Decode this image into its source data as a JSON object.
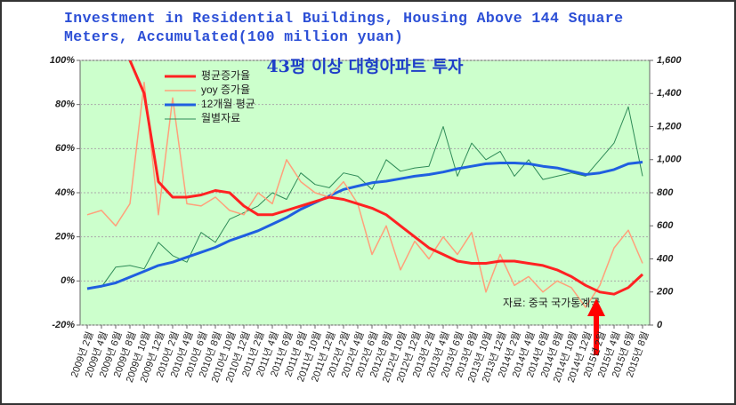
{
  "chart_data": {
    "type": "line",
    "title": "Investment in Residential Buildings, Housing Above 144 Square Meters, Accumulated(100 million yuan)",
    "subtitle": "43평 이상 대형아파트 투자",
    "source": "자료: 중국 국가통계국",
    "categories": [
      "2009년 2월",
      "2009년 4월",
      "2009년 6월",
      "2009년 8월",
      "2009년 10월",
      "2009년 12월",
      "2010년 2월",
      "2010년 4월",
      "2010년 6월",
      "2010년 8월",
      "2010년 10월",
      "2010년 12월",
      "2011년 2월",
      "2011년 4월",
      "2011년 6월",
      "2011년 8월",
      "2011년 10월",
      "2011년 12월",
      "2012년 2월",
      "2012년 4월",
      "2012년 6월",
      "2012년 8월",
      "2012년 10월",
      "2012년 12월",
      "2013년 2월",
      "2013년 4월",
      "2013년 6월",
      "2013년 8월",
      "2013년 10월",
      "2013년 12월",
      "2014년 2월",
      "2014년 4월",
      "2014년 6월",
      "2014년 8월",
      "2014년 10월",
      "2014년 12월",
      "2015년 2월",
      "2015년 4월",
      "2015년 6월",
      "2015년 8월"
    ],
    "series": [
      {
        "name": "평균증가율",
        "color": "#ff2222",
        "values": [
          null,
          null,
          null,
          100,
          85,
          45,
          38,
          38,
          39,
          41,
          40,
          34,
          30,
          30,
          32,
          34,
          36,
          38,
          37,
          35,
          33,
          30,
          25,
          20,
          15,
          12,
          9,
          8,
          8,
          9,
          9,
          8,
          7,
          5,
          2,
          -2,
          -5,
          -6,
          -3,
          3
        ]
      },
      {
        "name": "yoy 증가율",
        "color": "#ffa07a",
        "values": [
          30,
          32,
          25,
          35,
          90,
          30,
          83,
          35,
          34,
          38,
          32,
          30,
          40,
          35,
          55,
          45,
          40,
          38,
          45,
          35,
          12,
          25,
          5,
          18,
          10,
          20,
          12,
          22,
          -5,
          12,
          -2,
          2,
          -5,
          0,
          -3,
          -12,
          -2,
          15,
          23,
          8
        ]
      },
      {
        "name": "12개월 평균",
        "color": "#1f5fe0",
        "axis": "y2",
        "values": [
          220,
          235,
          255,
          290,
          325,
          360,
          380,
          410,
          440,
          470,
          510,
          540,
          570,
          610,
          650,
          700,
          740,
          780,
          820,
          840,
          860,
          870,
          885,
          900,
          910,
          925,
          945,
          960,
          975,
          980,
          980,
          975,
          960,
          950,
          930,
          910,
          920,
          940,
          975,
          985
        ]
      },
      {
        "name": "월별자료",
        "color": "#2e8b57",
        "axis": "y2",
        "values": [
          220,
          230,
          350,
          360,
          340,
          500,
          420,
          380,
          560,
          500,
          640,
          680,
          720,
          800,
          760,
          920,
          850,
          830,
          920,
          900,
          820,
          1000,
          930,
          950,
          960,
          1200,
          900,
          1100,
          1000,
          1050,
          900,
          1000,
          880,
          900,
          920,
          900,
          1000,
          1100,
          1320,
          900
        ]
      }
    ],
    "ylim": [
      -20,
      100
    ],
    "yticks": [
      {
        "value": -20,
        "label": "-20%"
      },
      {
        "value": 0,
        "label": "0%"
      },
      {
        "value": 20,
        "label": "20%"
      },
      {
        "value": 40,
        "label": "40%"
      },
      {
        "value": 60,
        "label": "60%"
      },
      {
        "value": 80,
        "label": "80%"
      },
      {
        "value": 100,
        "label": "100%"
      }
    ],
    "y2lim": [
      0,
      1600
    ],
    "y2ticks": [
      0,
      200,
      400,
      600,
      800,
      {
        "value": 1000,
        "label": "1,000"
      },
      {
        "value": 1200,
        "label": "1,200"
      },
      {
        "value": 1400,
        "label": "1,400"
      },
      {
        "value": 1600,
        "label": "1,600"
      }
    ],
    "grid": true
  }
}
